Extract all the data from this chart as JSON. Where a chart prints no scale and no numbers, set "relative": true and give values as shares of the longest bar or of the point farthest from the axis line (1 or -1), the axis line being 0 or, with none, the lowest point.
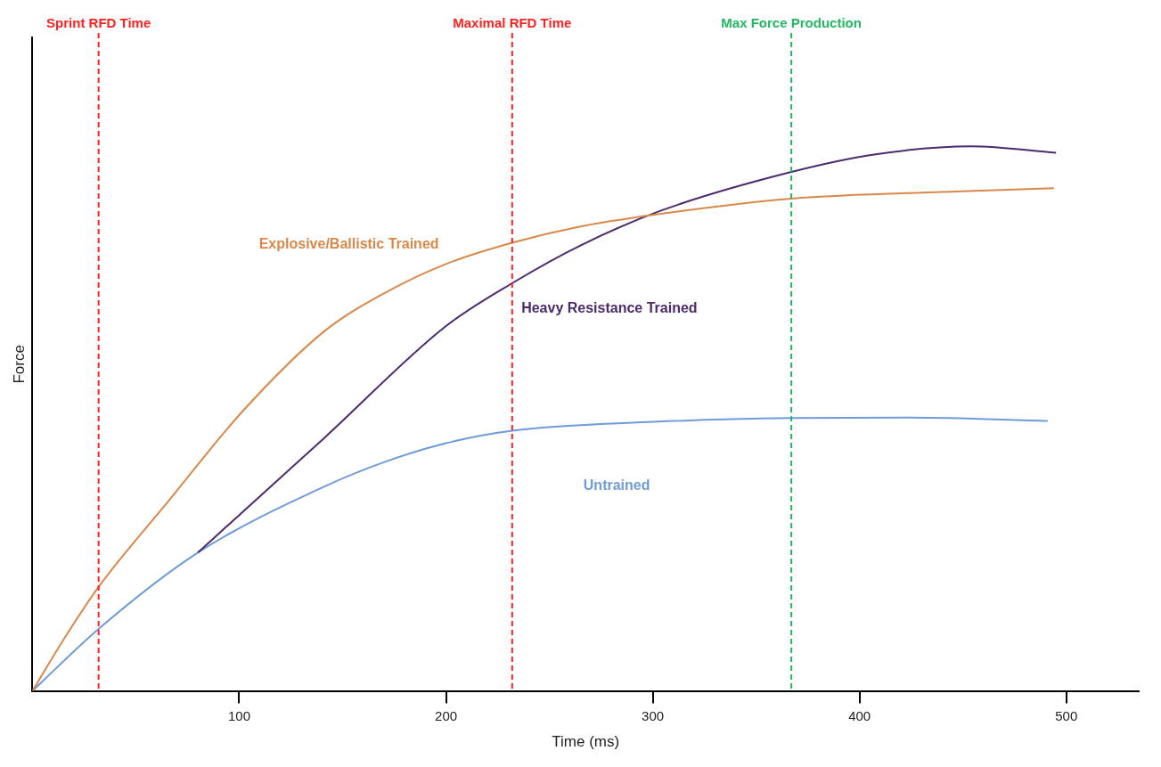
{
  "chart_data": {
    "type": "line",
    "xlabel": "Time (ms)",
    "ylabel": "Force",
    "relative": true,
    "xlim": [
      0,
      535
    ],
    "xticks": [
      100,
      200,
      300,
      400,
      500
    ],
    "grid": false,
    "legend": false,
    "marker": "none",
    "line_style": "solid",
    "series": [
      {
        "name": "Explosive/Ballistic Trained",
        "color": "#d9884a",
        "x": [
          0,
          16,
          32,
          65,
          102,
          141,
          170,
          200,
          232,
          264,
          300,
          367,
          446,
          494
        ],
        "values": [
          0,
          0.1,
          0.191,
          0.345,
          0.515,
          0.66,
          0.73,
          0.784,
          0.823,
          0.852,
          0.874,
          0.904,
          0.917,
          0.923
        ]
      },
      {
        "name": "Heavy Resistance Trained",
        "color": "#4b2a6e",
        "x": [
          80,
          100,
          141,
          200,
          233,
          265,
          304,
          367,
          407,
          454,
          495
        ],
        "values": [
          0.254,
          0.323,
          0.464,
          0.67,
          0.751,
          0.818,
          0.882,
          0.953,
          0.985,
          1,
          0.988
        ]
      },
      {
        "name": "Untrained",
        "color": "#6f9bd8",
        "x": [
          0,
          32,
          80,
          141,
          170,
          200,
          232,
          300,
          367,
          424,
          491
        ],
        "values": [
          0,
          0.114,
          0.254,
          0.375,
          0.42,
          0.455,
          0.478,
          0.494,
          0.501,
          0.502,
          0.496
        ]
      }
    ],
    "ref_lines": [
      {
        "axis": "x",
        "value": 32,
        "label": "Sprint RFD Time",
        "color": "#ff2020",
        "line_style": "dashed"
      },
      {
        "axis": "x",
        "value": 232,
        "label": "Maximal RFD Time",
        "color": "#ff2020",
        "line_style": "dashed"
      },
      {
        "axis": "x",
        "value": 367,
        "label": "Max Force Production",
        "color": "#20b860",
        "line_style": "dashed"
      }
    ]
  }
}
